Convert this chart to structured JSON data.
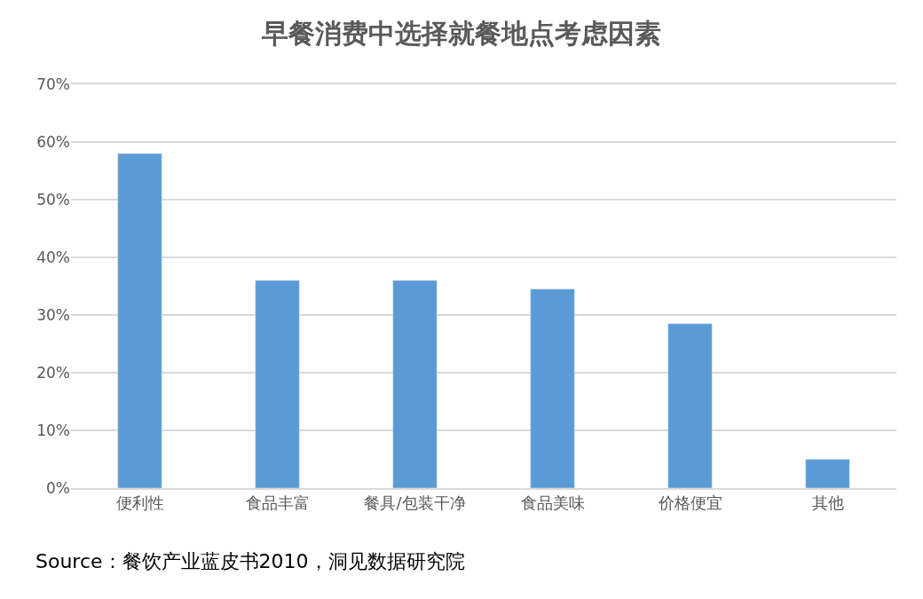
{
  "chart_data": {
    "type": "bar",
    "title": "早餐消费中选择就餐地点考虑因素",
    "categories": [
      "便利性",
      "食品丰富",
      "餐具/包装干净",
      "食品美味",
      "价格便宜",
      "其他"
    ],
    "values": [
      58,
      36,
      36,
      34.5,
      28.5,
      5
    ],
    "color": "#5b9bd5",
    "ylim": [
      0,
      70
    ],
    "yticks": [
      {
        "value": 0,
        "label": "0%"
      },
      {
        "value": 10,
        "label": "10%"
      },
      {
        "value": 20,
        "label": "20%"
      },
      {
        "value": 30,
        "label": "30%"
      },
      {
        "value": 40,
        "label": "40%"
      },
      {
        "value": 50,
        "label": "50%"
      },
      {
        "value": 60,
        "label": "60%"
      },
      {
        "value": 70,
        "label": "70%"
      }
    ],
    "grid": "y",
    "annotations": [
      "Source：餐饮产业蓝皮书2010，洞见数据研究院"
    ]
  }
}
